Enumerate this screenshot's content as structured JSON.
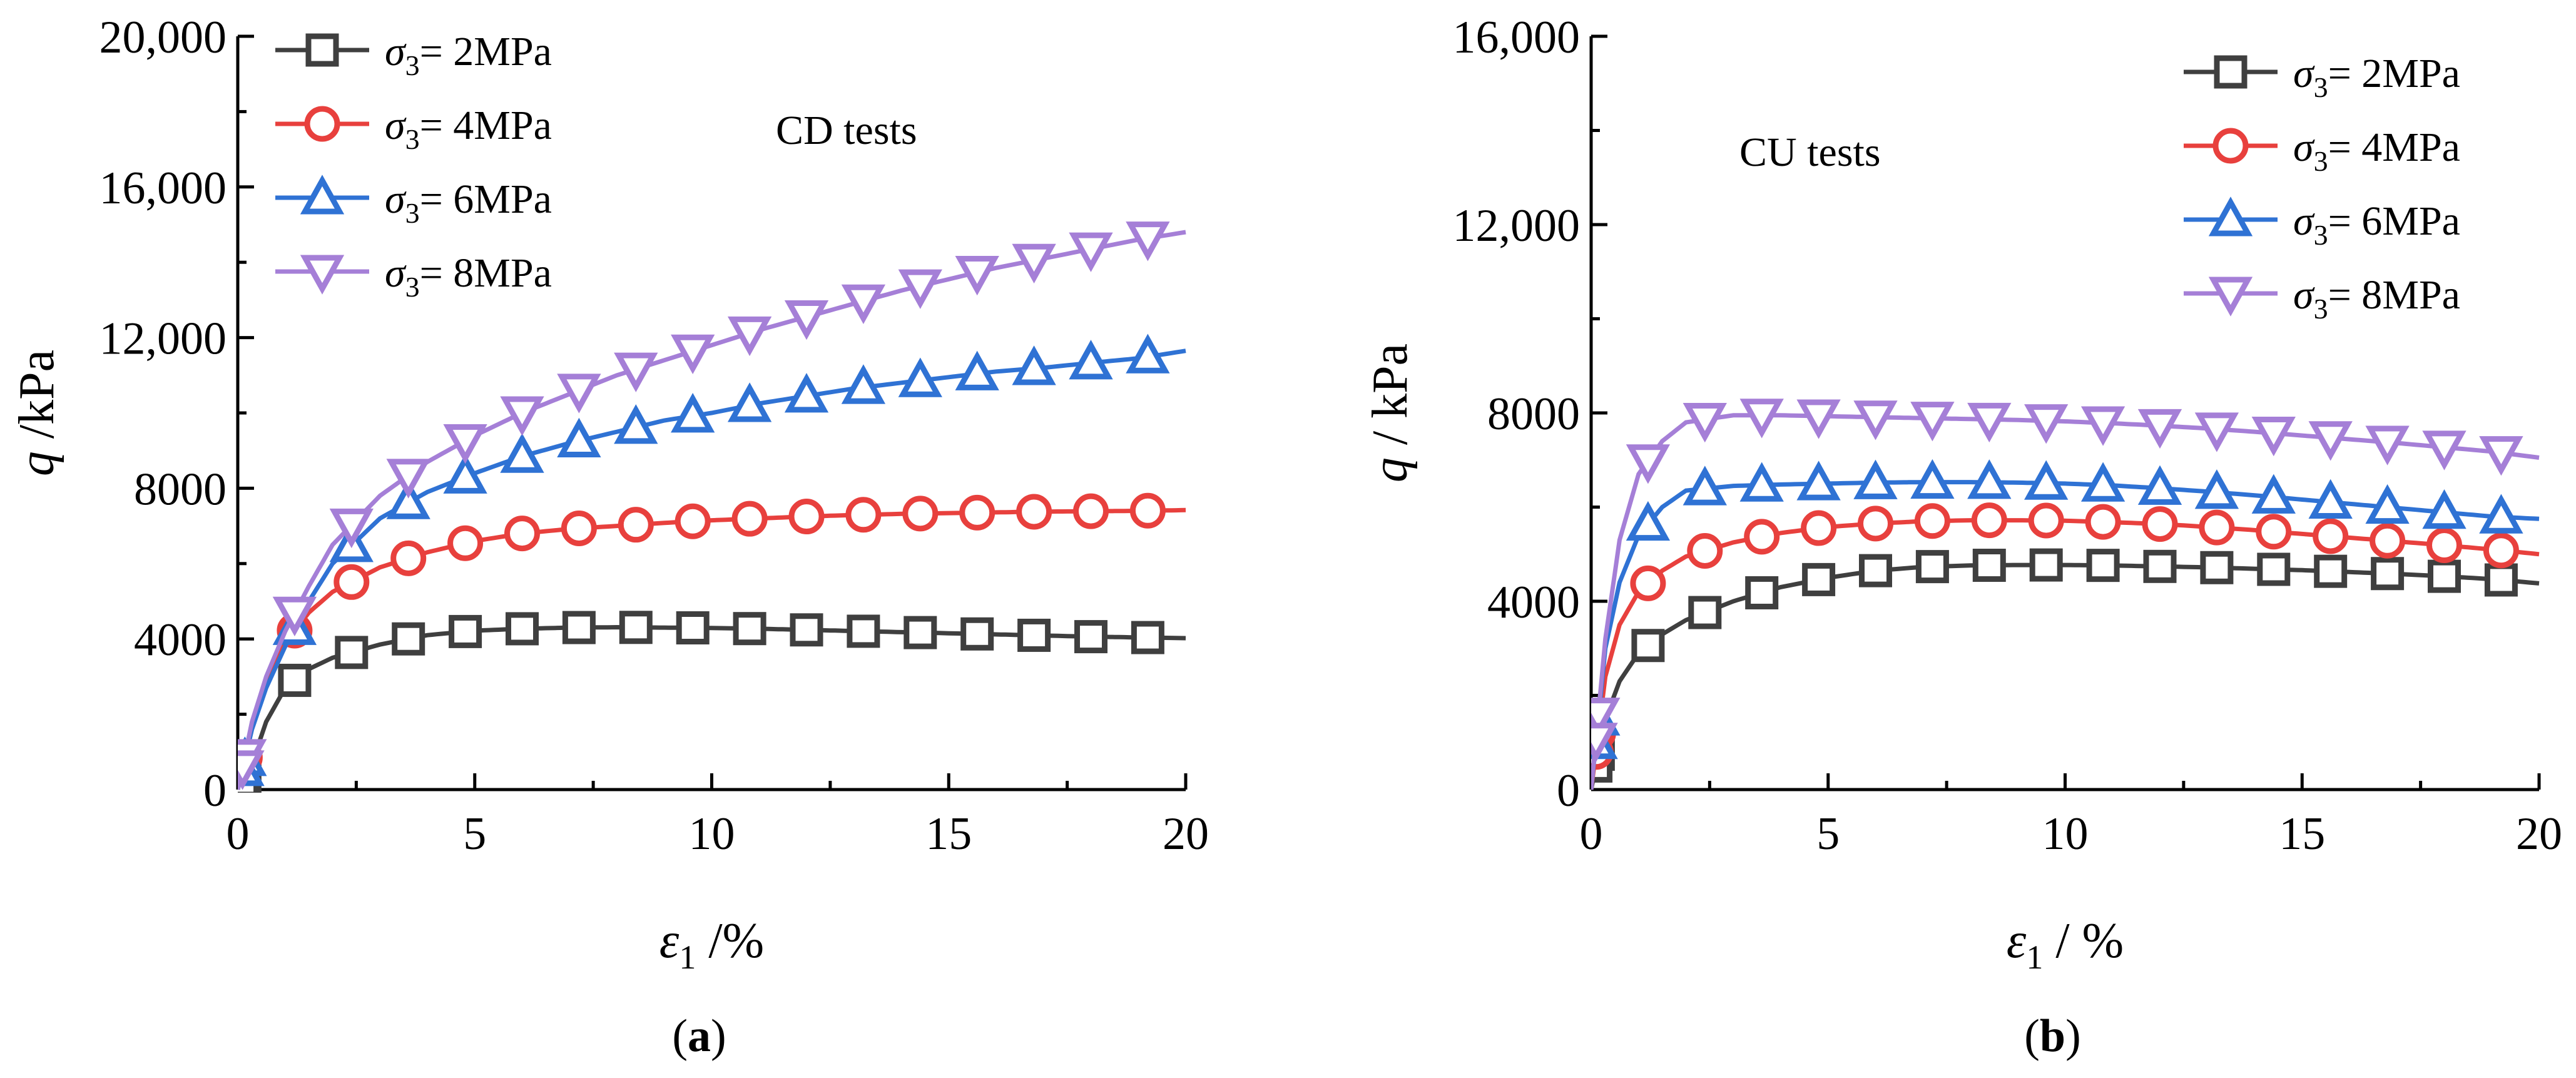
{
  "chart_data": [
    {
      "type": "line",
      "panel_label": "a",
      "annotation": "CD tests",
      "xlabel_symbol": "ε",
      "xlabel_sub": "1",
      "xlabel_unit": " /%",
      "ylabel_symbol": "q",
      "ylabel_unit": " /kPa",
      "xlim": [
        0,
        20
      ],
      "ylim": [
        0,
        20000
      ],
      "xticks": [
        0,
        5,
        10,
        15,
        20
      ],
      "yticks": [
        0,
        4000,
        8000,
        12000,
        16000,
        20000
      ],
      "ytick_labels": [
        "0",
        "4000",
        "8000",
        "12,000",
        "16,000",
        "20,000"
      ],
      "legend_position": "top-left",
      "series": [
        {
          "name_symbol": "σ",
          "name_sub": "3",
          "name_value": "= 2MPa",
          "color": "#3f3f3f",
          "marker": "square",
          "x": [
            0,
            0.3,
            0.6,
            1,
            1.5,
            2,
            3,
            4,
            5,
            6,
            7,
            8,
            9,
            10,
            11,
            12,
            13,
            14,
            15,
            16,
            17,
            18,
            19,
            20
          ],
          "y": [
            0,
            700,
            1800,
            2700,
            3200,
            3500,
            3850,
            4100,
            4220,
            4270,
            4300,
            4310,
            4300,
            4290,
            4270,
            4240,
            4210,
            4180,
            4150,
            4120,
            4090,
            4060,
            4040,
            4020
          ]
        },
        {
          "name_symbol": "σ",
          "name_sub": "3",
          "name_value": "= 4MPa",
          "color": "#e8403d",
          "marker": "circle",
          "x": [
            0,
            0.3,
            0.6,
            1,
            1.5,
            2,
            3,
            4,
            5,
            6,
            7,
            8,
            9,
            10,
            11,
            12,
            13,
            14,
            15,
            16,
            17,
            18,
            19,
            20
          ],
          "y": [
            0,
            1700,
            2800,
            3900,
            4700,
            5250,
            5900,
            6300,
            6600,
            6800,
            6920,
            7000,
            7080,
            7150,
            7200,
            7250,
            7290,
            7320,
            7340,
            7360,
            7380,
            7390,
            7400,
            7420
          ]
        },
        {
          "name_symbol": "σ",
          "name_sub": "3",
          "name_value": "= 6MPa",
          "color": "#2f72d4",
          "marker": "triangle-up",
          "x": [
            0,
            0.3,
            0.6,
            1,
            1.5,
            2,
            3,
            4,
            5,
            6,
            7,
            8,
            9,
            10,
            11,
            12,
            13,
            14,
            15,
            16,
            17,
            18,
            19,
            20
          ],
          "y": [
            0,
            1600,
            2700,
            3800,
            5000,
            6000,
            7200,
            7900,
            8400,
            8850,
            9200,
            9500,
            9800,
            10000,
            10250,
            10450,
            10650,
            10800,
            10950,
            11100,
            11200,
            11330,
            11450,
            11650
          ]
        },
        {
          "name_symbol": "σ",
          "name_sub": "3",
          "name_value": "= 8MPa",
          "color": "#a57fd7",
          "marker": "triangle-down",
          "x": [
            0,
            0.3,
            0.6,
            1,
            1.5,
            2,
            3,
            4,
            5,
            6,
            7,
            8,
            9,
            10,
            11,
            12,
            13,
            14,
            15,
            16,
            17,
            18,
            19,
            20
          ],
          "y": [
            0,
            1800,
            3000,
            4200,
            5400,
            6500,
            7800,
            8700,
            9400,
            10000,
            10500,
            11000,
            11400,
            11800,
            12200,
            12550,
            12900,
            13250,
            13550,
            13850,
            14100,
            14350,
            14600,
            14800
          ]
        }
      ]
    },
    {
      "type": "line",
      "panel_label": "b",
      "annotation": "CU tests",
      "xlabel_symbol": "ε",
      "xlabel_sub": "1",
      "xlabel_unit": " / %",
      "ylabel_symbol": "q",
      "ylabel_unit": " / kPa",
      "xlim": [
        0,
        20
      ],
      "ylim": [
        0,
        16000
      ],
      "xticks": [
        0,
        5,
        10,
        15,
        20
      ],
      "yticks": [
        0,
        4000,
        8000,
        12000,
        16000
      ],
      "ytick_labels": [
        "0",
        "4000",
        "8000",
        "12,000",
        "16,000"
      ],
      "legend_position": "top-right",
      "series": [
        {
          "name_symbol": "σ",
          "name_sub": "3",
          "name_value": "= 2MPa",
          "color": "#3f3f3f",
          "marker": "square",
          "x": [
            0,
            0.3,
            0.6,
            1,
            1.5,
            2,
            3,
            4,
            5,
            6,
            7,
            8,
            9,
            10,
            11,
            12,
            13,
            14,
            15,
            16,
            17,
            18,
            19,
            20
          ],
          "y": [
            0,
            1500,
            2300,
            2900,
            3300,
            3600,
            4000,
            4300,
            4500,
            4650,
            4730,
            4760,
            4770,
            4770,
            4760,
            4740,
            4720,
            4690,
            4660,
            4620,
            4580,
            4530,
            4470,
            4380
          ]
        },
        {
          "name_symbol": "σ",
          "name_sub": "3",
          "name_value": "= 4MPa",
          "color": "#e8403d",
          "marker": "circle",
          "x": [
            0,
            0.3,
            0.6,
            1,
            1.5,
            2,
            3,
            4,
            5,
            6,
            7,
            8,
            9,
            10,
            11,
            12,
            13,
            14,
            15,
            16,
            17,
            18,
            19,
            20
          ],
          "y": [
            0,
            2400,
            3500,
            4200,
            4650,
            4950,
            5250,
            5450,
            5580,
            5650,
            5700,
            5720,
            5720,
            5710,
            5680,
            5640,
            5580,
            5510,
            5430,
            5350,
            5270,
            5190,
            5100,
            5000
          ]
        },
        {
          "name_symbol": "σ",
          "name_sub": "3",
          "name_value": "= 6MPa",
          "color": "#2f72d4",
          "marker": "triangle-up",
          "x": [
            0,
            0.3,
            0.6,
            1,
            1.5,
            2,
            3,
            4,
            5,
            6,
            7,
            8,
            9,
            10,
            11,
            12,
            13,
            14,
            15,
            16,
            17,
            18,
            19,
            20
          ],
          "y": [
            0,
            3000,
            4400,
            5400,
            6000,
            6350,
            6450,
            6480,
            6500,
            6520,
            6530,
            6530,
            6520,
            6500,
            6460,
            6400,
            6330,
            6250,
            6160,
            6070,
            5980,
            5890,
            5800,
            5750
          ]
        },
        {
          "name_symbol": "σ",
          "name_sub": "3",
          "name_value": "= 8MPa",
          "color": "#a57fd7",
          "marker": "triangle-down",
          "x": [
            0,
            0.3,
            0.6,
            1,
            1.5,
            2,
            3,
            4,
            5,
            6,
            7,
            8,
            9,
            10,
            11,
            12,
            13,
            14,
            15,
            16,
            17,
            18,
            19,
            20
          ],
          "y": [
            0,
            3200,
            5300,
            6700,
            7400,
            7800,
            7950,
            7950,
            7930,
            7910,
            7890,
            7870,
            7850,
            7820,
            7780,
            7730,
            7670,
            7600,
            7520,
            7440,
            7360,
            7270,
            7180,
            7050
          ]
        }
      ]
    }
  ]
}
